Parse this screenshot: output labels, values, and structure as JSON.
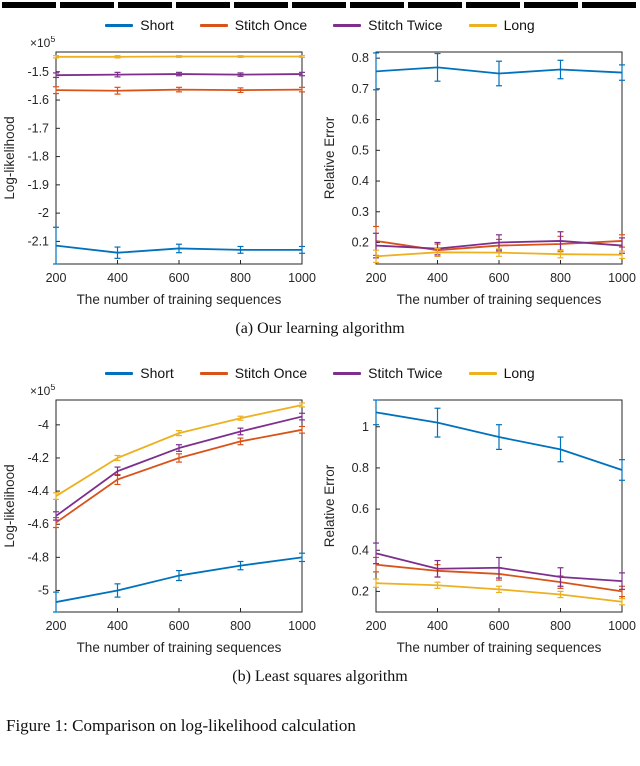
{
  "page": {
    "figure_caption_partial": "Figure 1: Comparison on log-likelihood calculation"
  },
  "colors": {
    "short": "#0072BD",
    "stitch_once": "#D95319",
    "stitch_twice": "#7E2F8E",
    "long": "#EDB120",
    "axis": "#262626"
  },
  "figures": [
    {
      "id": "a",
      "caption": "(a) Our learning algorithm",
      "legend": [
        {
          "label": "Short",
          "color": "#0072BD"
        },
        {
          "label": "Stitch Once",
          "color": "#D95319"
        },
        {
          "label": "Stitch Twice",
          "color": "#7E2F8E"
        },
        {
          "label": "Long",
          "color": "#EDB120"
        }
      ]
    },
    {
      "id": "b",
      "caption": "(b) Least squares algorithm",
      "legend": [
        {
          "label": "Short",
          "color": "#0072BD"
        },
        {
          "label": "Stitch Once",
          "color": "#D95319"
        },
        {
          "label": "Stitch Twice",
          "color": "#7E2F8E"
        },
        {
          "label": "Long",
          "color": "#EDB120"
        }
      ]
    }
  ],
  "chart_data": [
    {
      "id": "a-left",
      "figure": "a",
      "position": "left",
      "type": "line",
      "xlabel": "The number of training sequences",
      "ylabel": "Log-likelihood",
      "y_scale_label": "×10^5",
      "x": [
        200,
        400,
        600,
        800,
        1000
      ],
      "xticks": [
        200,
        400,
        600,
        800,
        1000
      ],
      "xlim": [
        200,
        1000
      ],
      "ylim": [
        -2.18,
        -1.43
      ],
      "yticks": [
        -1.5,
        -1.6,
        -1.7,
        -1.8,
        -1.9,
        -2,
        -2.1
      ],
      "ytick_labels": [
        "-1.5",
        "-1.6",
        "-1.7",
        "-1.8",
        "-1.9",
        "-2",
        "-2.1"
      ],
      "series": [
        {
          "name": "Short",
          "color": "#0072BD",
          "values": [
            -2.115,
            -2.14,
            -2.125,
            -2.13,
            -2.13
          ],
          "errors": [
            0.065,
            0.02,
            0.015,
            0.012,
            0.012
          ]
        },
        {
          "name": "Stitch Once",
          "color": "#D95319",
          "values": [
            -1.565,
            -1.567,
            -1.563,
            -1.565,
            -1.563
          ],
          "errors": [
            0.012,
            0.012,
            0.008,
            0.008,
            0.008
          ]
        },
        {
          "name": "Stitch Twice",
          "color": "#7E2F8E",
          "values": [
            -1.512,
            -1.51,
            -1.508,
            -1.51,
            -1.508
          ],
          "errors": [
            0.008,
            0.008,
            0.006,
            0.006,
            0.006
          ]
        },
        {
          "name": "Long",
          "color": "#EDB120",
          "values": [
            -1.447,
            -1.447,
            -1.446,
            -1.446,
            -1.446
          ],
          "errors": [
            0.004,
            0.004,
            0.003,
            0.003,
            0.003
          ]
        }
      ]
    },
    {
      "id": "a-right",
      "figure": "a",
      "position": "right",
      "type": "line",
      "xlabel": "The number of training sequences",
      "ylabel": "Relative Error",
      "y_scale_label": null,
      "x": [
        200,
        400,
        600,
        800,
        1000
      ],
      "xticks": [
        200,
        400,
        600,
        800,
        1000
      ],
      "xlim": [
        200,
        1000
      ],
      "ylim": [
        0.13,
        0.82
      ],
      "yticks": [
        0.2,
        0.3,
        0.4,
        0.5,
        0.6,
        0.7,
        0.8
      ],
      "ytick_labels": [
        "0.2",
        "0.3",
        "0.4",
        "0.5",
        "0.6",
        "0.7",
        "0.8"
      ],
      "series": [
        {
          "name": "Short",
          "color": "#0072BD",
          "values": [
            0.757,
            0.77,
            0.75,
            0.763,
            0.753
          ],
          "errors": [
            0.06,
            0.045,
            0.04,
            0.03,
            0.025
          ]
        },
        {
          "name": "Stitch Once",
          "color": "#D95319",
          "values": [
            0.205,
            0.175,
            0.19,
            0.195,
            0.205
          ],
          "errors": [
            0.047,
            0.02,
            0.02,
            0.025,
            0.02
          ]
        },
        {
          "name": "Stitch Twice",
          "color": "#7E2F8E",
          "values": [
            0.19,
            0.18,
            0.2,
            0.205,
            0.19
          ],
          "errors": [
            0.04,
            0.02,
            0.025,
            0.03,
            0.025
          ]
        },
        {
          "name": "Long",
          "color": "#EDB120",
          "values": [
            0.155,
            0.168,
            0.167,
            0.162,
            0.16
          ],
          "errors": [
            0.02,
            0.012,
            0.012,
            0.012,
            0.012
          ]
        }
      ]
    },
    {
      "id": "b-left",
      "figure": "b",
      "position": "left",
      "type": "line",
      "xlabel": "The number of training sequences",
      "ylabel": "Log-likelihood",
      "y_scale_label": "×10^5",
      "x": [
        200,
        400,
        600,
        800,
        1000
      ],
      "xticks": [
        200,
        400,
        600,
        800,
        1000
      ],
      "xlim": [
        200,
        1000
      ],
      "ylim": [
        -5.13,
        -3.85
      ],
      "yticks": [
        -4,
        -4.2,
        -4.4,
        -4.6,
        -4.8,
        -5
      ],
      "ytick_labels": [
        "-4",
        "-4.2",
        "-4.4",
        "-4.6",
        "-4.8",
        "-5"
      ],
      "series": [
        {
          "name": "Short",
          "color": "#0072BD",
          "values": [
            -5.07,
            -5.0,
            -4.91,
            -4.85,
            -4.8
          ],
          "errors": [
            0.06,
            0.04,
            0.03,
            0.025,
            0.025
          ]
        },
        {
          "name": "Stitch Once",
          "color": "#D95319",
          "values": [
            -4.59,
            -4.33,
            -4.2,
            -4.1,
            -4.03
          ],
          "errors": [
            0.03,
            0.03,
            0.025,
            0.02,
            0.02
          ]
        },
        {
          "name": "Stitch Twice",
          "color": "#7E2F8E",
          "values": [
            -4.55,
            -4.28,
            -4.14,
            -4.04,
            -3.95
          ],
          "errors": [
            0.025,
            0.025,
            0.02,
            0.02,
            0.02
          ]
        },
        {
          "name": "Long",
          "color": "#EDB120",
          "values": [
            -4.43,
            -4.2,
            -4.05,
            -3.96,
            -3.88
          ],
          "errors": [
            0.02,
            0.015,
            0.015,
            0.012,
            0.012
          ]
        }
      ]
    },
    {
      "id": "b-right",
      "figure": "b",
      "position": "right",
      "type": "line",
      "xlabel": "The number of training sequences",
      "ylabel": "Relative Error",
      "y_scale_label": null,
      "x": [
        200,
        400,
        600,
        800,
        1000
      ],
      "xticks": [
        200,
        400,
        600,
        800,
        1000
      ],
      "xlim": [
        200,
        1000
      ],
      "ylim": [
        0.1,
        1.13
      ],
      "yticks": [
        0.2,
        0.4,
        0.6,
        0.8,
        1
      ],
      "ytick_labels": [
        "0.2",
        "0.4",
        "0.6",
        "0.8",
        "1"
      ],
      "series": [
        {
          "name": "Short",
          "color": "#0072BD",
          "values": [
            1.07,
            1.02,
            0.95,
            0.89,
            0.79
          ],
          "errors": [
            0.06,
            0.07,
            0.06,
            0.06,
            0.05
          ]
        },
        {
          "name": "Stitch Once",
          "color": "#D95319",
          "values": [
            0.33,
            0.3,
            0.285,
            0.245,
            0.2
          ],
          "errors": [
            0.035,
            0.03,
            0.03,
            0.03,
            0.025
          ]
        },
        {
          "name": "Stitch Twice",
          "color": "#7E2F8E",
          "values": [
            0.385,
            0.31,
            0.315,
            0.27,
            0.25
          ],
          "errors": [
            0.05,
            0.04,
            0.05,
            0.045,
            0.04
          ]
        },
        {
          "name": "Long",
          "color": "#EDB120",
          "values": [
            0.24,
            0.23,
            0.21,
            0.185,
            0.15
          ],
          "errors": [
            0.02,
            0.015,
            0.015,
            0.015,
            0.015
          ]
        }
      ]
    }
  ]
}
